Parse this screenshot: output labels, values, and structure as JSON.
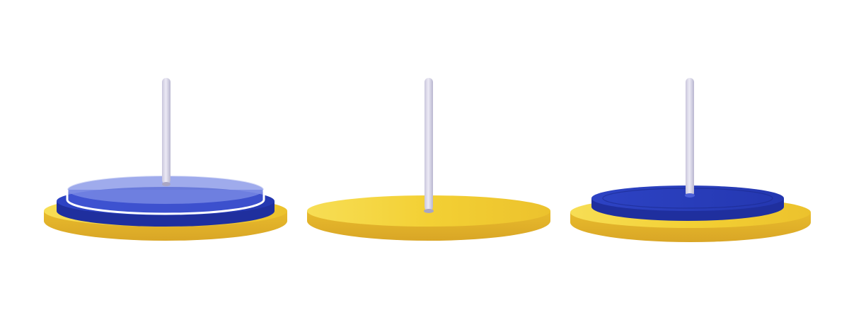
{
  "game": {
    "pegs": [
      {
        "id": "left",
        "disks": [
          {
            "color": "blue",
            "state": "ghost"
          },
          {
            "color": "blue",
            "state": "placed"
          }
        ]
      },
      {
        "id": "middle",
        "disks": []
      },
      {
        "id": "right",
        "disks": [
          {
            "color": "blue",
            "state": "placed"
          }
        ]
      }
    ]
  },
  "colors": {
    "background": "#ffffff",
    "base_top": "#f3d034",
    "base_side": "#e0b02a",
    "disk_blue_top": "#2a3fbf",
    "disk_blue_side": "#1f2f9e",
    "disk_ghost": "#7f8fe6",
    "rod": "#d6d4e6",
    "rod_shadow": "#a9a6c4",
    "outline": "#ffffff"
  }
}
